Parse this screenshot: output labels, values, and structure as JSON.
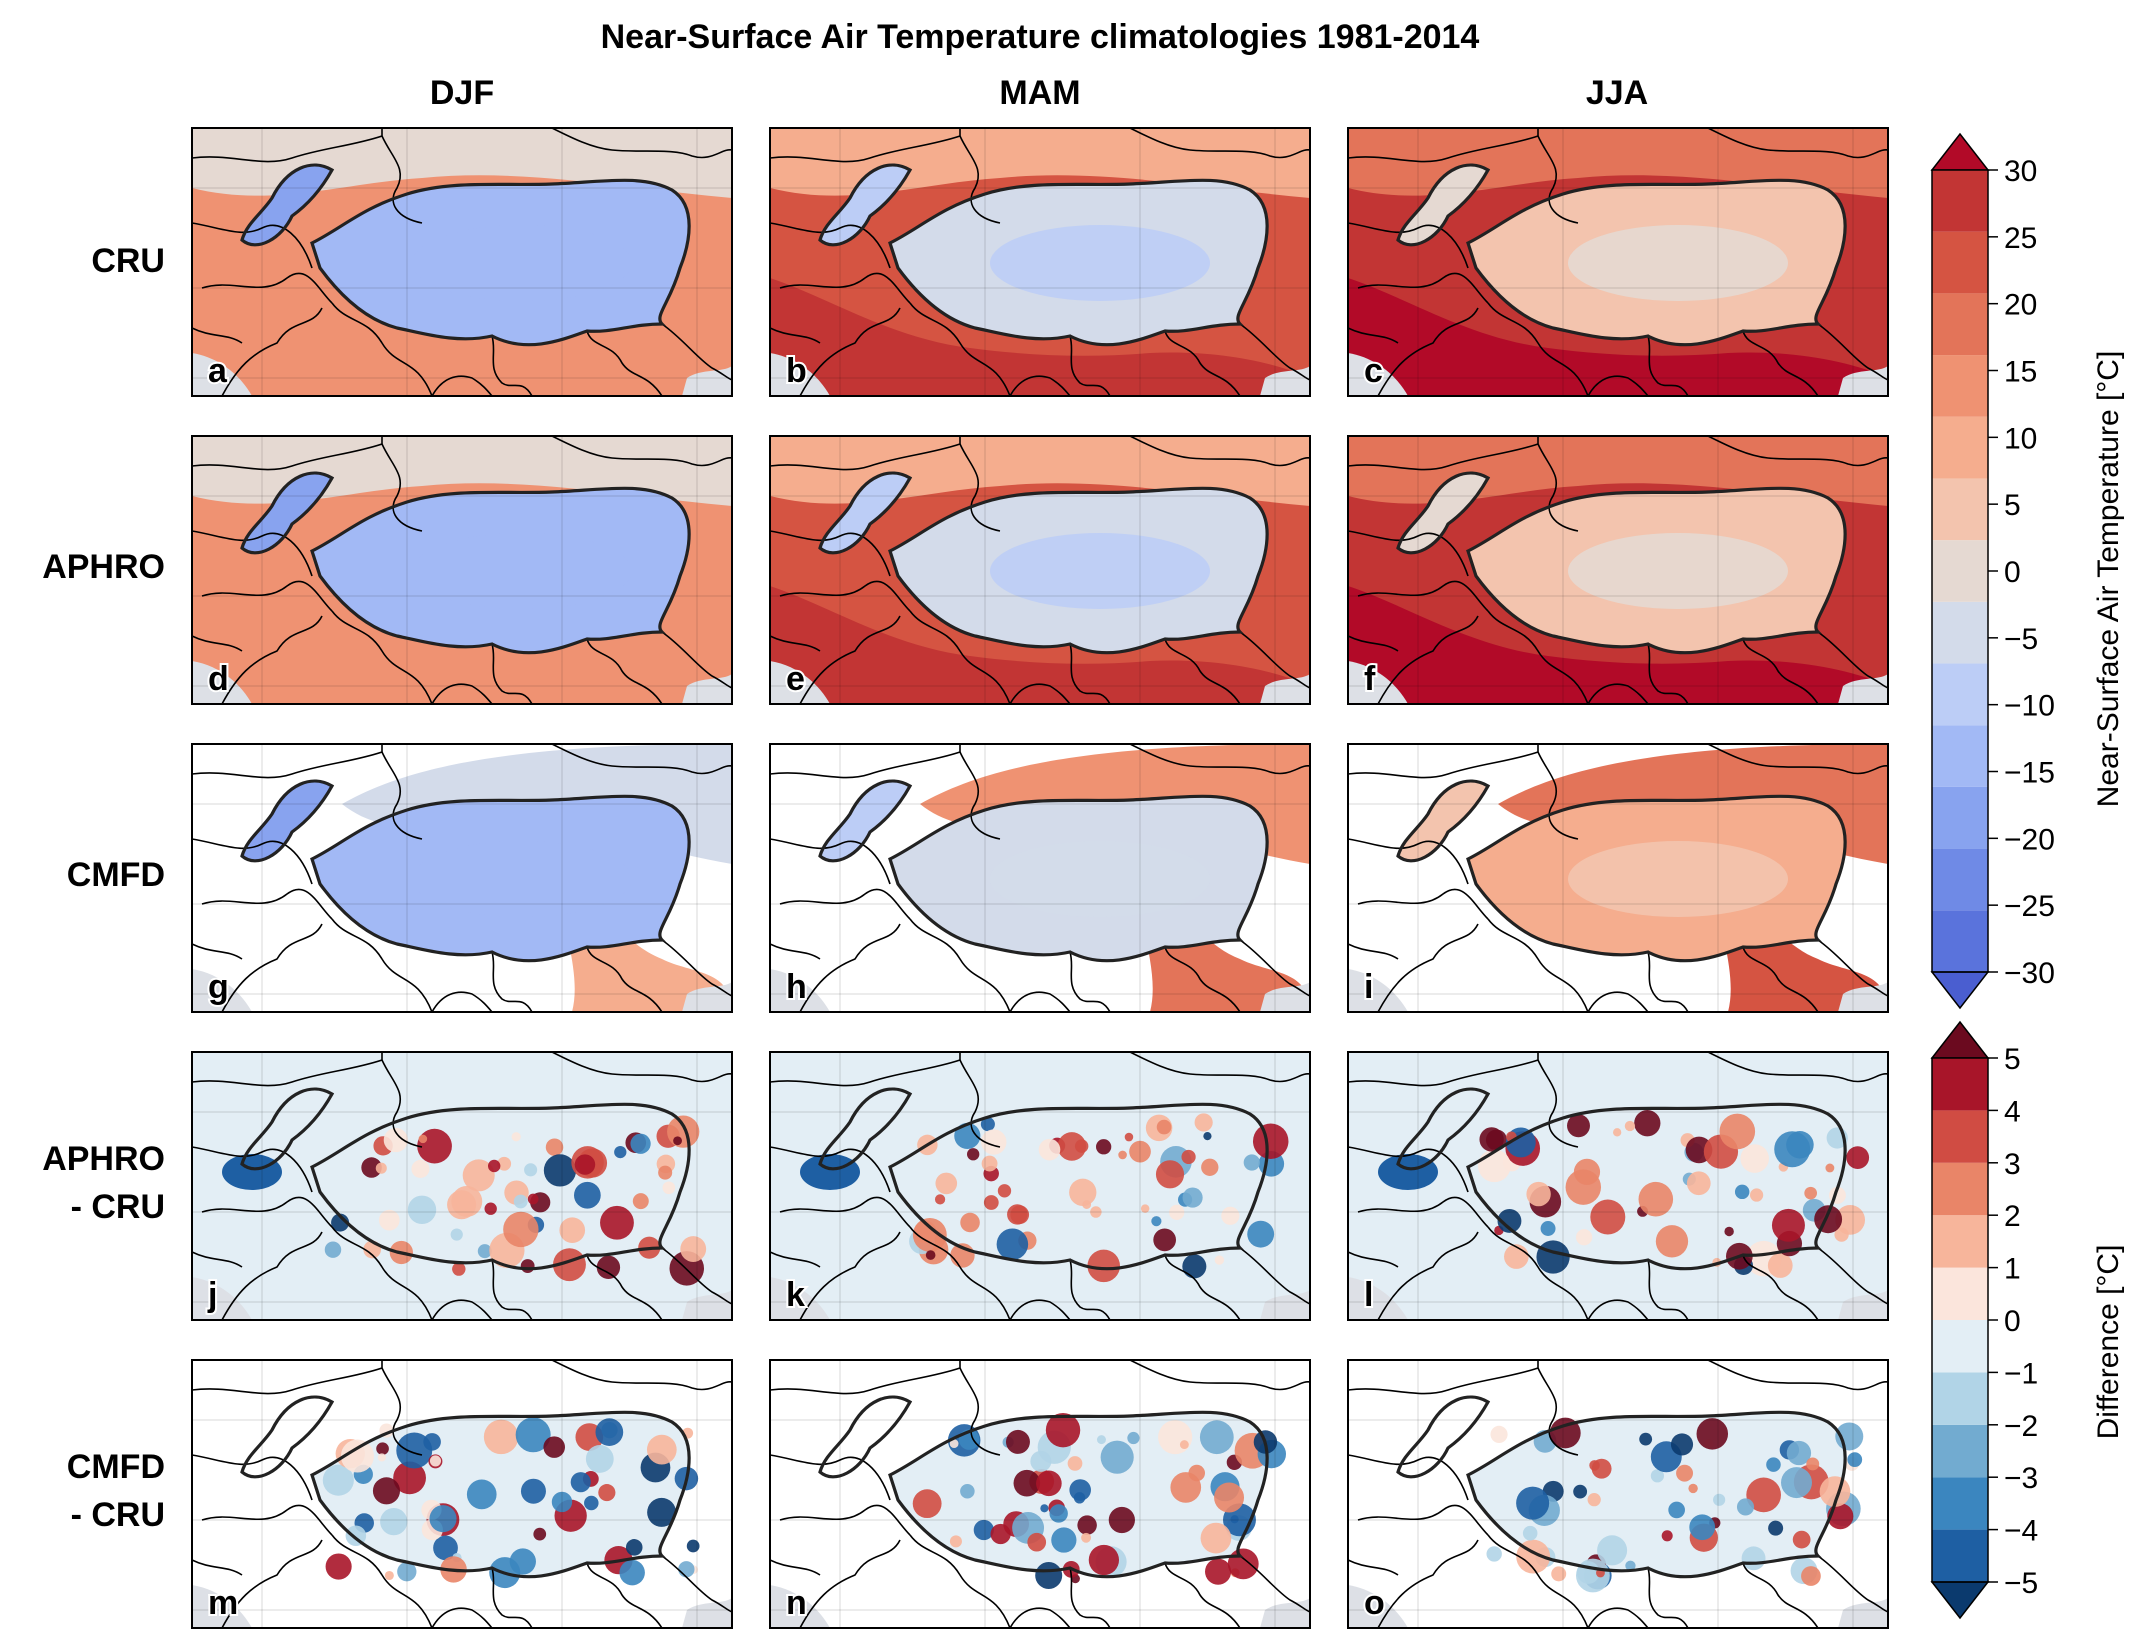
{
  "figure": {
    "title": "Near-Surface Air Temperature climatologies 1981-2014",
    "columns": [
      "DJF",
      "MAM",
      "JJA"
    ],
    "rows": [
      [
        "CRU"
      ],
      [
        "APHRO"
      ],
      [
        "CMFD"
      ],
      [
        "APHRO",
        "- CRU"
      ],
      [
        "CMFD",
        "- CRU"
      ]
    ],
    "panel_letters": [
      "a",
      "b",
      "c",
      "d",
      "e",
      "f",
      "g",
      "h",
      "i",
      "j",
      "k",
      "l",
      "m",
      "n",
      "o"
    ]
  },
  "colors": {
    "temp_levels": [
      "#4a5ed0",
      "#5a73dc",
      "#6f8ae6",
      "#88a3ef",
      "#a2b9f5",
      "#bccdf6",
      "#d3dbea",
      "#e5d9d2",
      "#f3c4ae",
      "#f5ad8e",
      "#ef9272",
      "#e37459",
      "#d55442",
      "#c23534",
      "#b20a28"
    ],
    "diff_levels": [
      "#0b3a6e",
      "#1e5fa3",
      "#3b86bf",
      "#72abd0",
      "#b1d4e7",
      "#e3eef5",
      "#fbe5dc",
      "#f7b59b",
      "#e98568",
      "#d04c43",
      "#a81529",
      "#6b0a1f"
    ],
    "ocean": "#dde0e6",
    "nodata": "#ffffff"
  },
  "chart_data": [
    {
      "type": "heatmap",
      "title": "Near-Surface Air Temperature climatologies 1981-2014",
      "variable": "Near-Surface Air Temperature [°C]",
      "colorbar": {
        "label": "Near-Surface Air Temperature [°C]",
        "range": [
          -30,
          30
        ],
        "step": 5,
        "ticks": [
          "30",
          "25",
          "20",
          "15",
          "10",
          "5",
          "0",
          "−5",
          "−10",
          "−15",
          "−20",
          "−25",
          "−30"
        ],
        "extend": "both"
      },
      "panels": [
        {
          "letter": "a",
          "dataset": "CRU",
          "season": "DJF",
          "plateau_c": -12,
          "lowland_c": 15,
          "north_c": 0
        },
        {
          "letter": "b",
          "dataset": "CRU",
          "season": "MAM",
          "plateau_c": -3,
          "lowland_c": 27,
          "north_c": 12
        },
        {
          "letter": "c",
          "dataset": "CRU",
          "season": "JJA",
          "plateau_c": 6,
          "lowland_c": 31,
          "north_c": 23
        },
        {
          "letter": "d",
          "dataset": "APHRO",
          "season": "DJF",
          "plateau_c": -12,
          "lowland_c": 15,
          "north_c": 0
        },
        {
          "letter": "e",
          "dataset": "APHRO",
          "season": "MAM",
          "plateau_c": -3,
          "lowland_c": 27,
          "north_c": 12
        },
        {
          "letter": "f",
          "dataset": "APHRO",
          "season": "JJA",
          "plateau_c": 6,
          "lowland_c": 31,
          "north_c": 23
        },
        {
          "letter": "g",
          "dataset": "CMFD",
          "season": "DJF",
          "plateau_c": -12,
          "lowland_c": 14,
          "north_c": -5
        },
        {
          "letter": "h",
          "dataset": "CMFD",
          "season": "MAM",
          "plateau_c": -2,
          "lowland_c": 20,
          "north_c": 15
        },
        {
          "letter": "i",
          "dataset": "CMFD",
          "season": "JJA",
          "plateau_c": 10,
          "lowland_c": 25,
          "north_c": 20
        }
      ]
    },
    {
      "type": "heatmap",
      "variable": "Difference [°C]",
      "colorbar": {
        "label": "Difference [°C]",
        "range": [
          -5,
          5
        ],
        "step": 1,
        "ticks": [
          "5",
          "4",
          "3",
          "2",
          "1",
          "0",
          "−1",
          "−2",
          "−3",
          "−4",
          "−5"
        ],
        "extend": "both"
      },
      "panels": [
        {
          "letter": "j",
          "comparison": "APHRO - CRU",
          "season": "DJF"
        },
        {
          "letter": "k",
          "comparison": "APHRO - CRU",
          "season": "MAM"
        },
        {
          "letter": "l",
          "comparison": "APHRO - CRU",
          "season": "JJA"
        },
        {
          "letter": "m",
          "comparison": "CMFD - CRU",
          "season": "DJF"
        },
        {
          "letter": "n",
          "comparison": "CMFD - CRU",
          "season": "MAM"
        },
        {
          "letter": "o",
          "comparison": "CMFD - CRU",
          "season": "JJA"
        }
      ]
    }
  ]
}
